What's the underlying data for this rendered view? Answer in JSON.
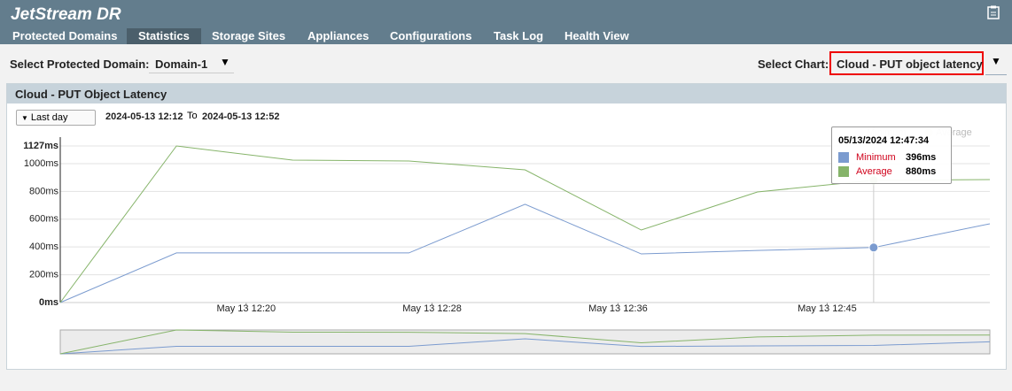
{
  "header": {
    "title": "JetStream DR"
  },
  "tabs": [
    "Protected Domains",
    "Statistics",
    "Storage Sites",
    "Appliances",
    "Configurations",
    "Task Log",
    "Health View"
  ],
  "active_tab": 1,
  "toolbar": {
    "domain_label": "Select Protected Domain:",
    "domain": "Domain-1",
    "chart_label": "Select Chart:",
    "chart": "Cloud - PUT object latency"
  },
  "panel": {
    "title": "Cloud - PUT Object Latency",
    "range": "Last day",
    "from": "2024-05-13 12:12",
    "to_label": "To",
    "to": "2024-05-13 12:52"
  },
  "tooltip": {
    "time": "05/13/2024 12:47:34",
    "rows": [
      {
        "name": "Minimum",
        "value": "396ms"
      },
      {
        "name": "Average",
        "value": "880ms"
      }
    ]
  },
  "chart_data": {
    "type": "line",
    "x": [
      732,
      737,
      742,
      747,
      752,
      757,
      762,
      767,
      772
    ],
    "xlim": [
      732,
      772
    ],
    "xticks": [
      {
        "value": 740,
        "label": "May 13 12:20"
      },
      {
        "value": 748,
        "label": "May 13 12:28"
      },
      {
        "value": 756,
        "label": "May 13 12:36"
      },
      {
        "value": 765,
        "label": "May 13 12:45"
      }
    ],
    "ylim": [
      0,
      1127
    ],
    "yticks": [
      {
        "value": 0,
        "label": "0ms"
      },
      {
        "value": 200,
        "label": "200ms"
      },
      {
        "value": 400,
        "label": "400ms"
      },
      {
        "value": 600,
        "label": "600ms"
      },
      {
        "value": 800,
        "label": "800ms"
      },
      {
        "value": 1000,
        "label": "1000ms"
      },
      {
        "value": 1127,
        "label": "1127ms"
      }
    ],
    "grid": true,
    "series": [
      {
        "name": "Minimum",
        "color": "#7b9bcf",
        "values": [
          0,
          357,
          357,
          357,
          707,
          350,
          375,
          396,
          567
        ]
      },
      {
        "name": "Average",
        "color": "#86b46a",
        "values": [
          0,
          1127,
          1025,
          1019,
          955,
          522,
          796,
          880,
          885
        ]
      }
    ]
  }
}
